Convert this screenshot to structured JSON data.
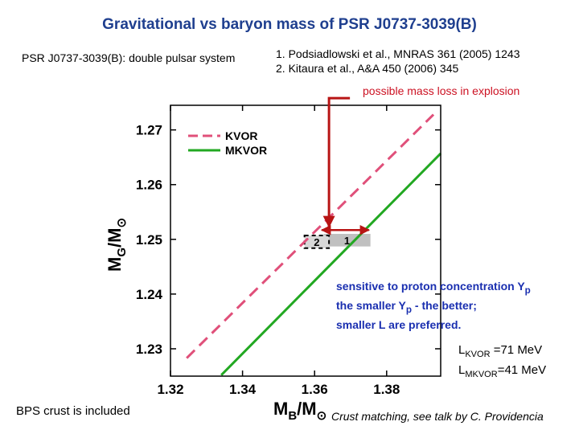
{
  "title": "Gravitational vs baryon mass of PSR J0737-3039(B)",
  "system_note": "PSR J0737-3039(B): double pulsar system",
  "references": [
    "1.  Podsiadlowski et al., MNRAS 361 (2005) 1243",
    "2.  Kitaura et al., A&A 450 (2006) 345"
  ],
  "mass_loss_note": "possible mass loss in explosion",
  "sensitivity_notes": {
    "line1_text": "sensitive to proton concentration Y",
    "line1_sub": "p",
    "line2_pre": "the smaller Y",
    "line2_sub": "p",
    "line2_post": " - the better;",
    "line3": "smaller L are preferred."
  },
  "l_values": [
    {
      "symbol": "L",
      "sub": "KVOR",
      "value": "=71 MeV"
    },
    {
      "symbol": "L",
      "sub": "MKVOR",
      "value": "=41 MeV"
    }
  ],
  "crust_note": "BPS crust is included",
  "crust_matching_note": "Crust matching, see talk by C. Providencia",
  "chart_data": {
    "type": "line",
    "xlabel": {
      "main": "M",
      "sub": "B",
      "rest": "/M",
      "sun": "⊙"
    },
    "ylabel": {
      "main": "M",
      "sub": "G",
      "rest": "/M",
      "sun": "⊙"
    },
    "xlim": [
      1.32,
      1.395
    ],
    "ylim": [
      1.225,
      1.2745
    ],
    "x_ticks": [
      1.32,
      1.34,
      1.36,
      1.38
    ],
    "x_tick_labels": [
      "1.32",
      "1.34",
      "1.36",
      "1.38"
    ],
    "y_ticks": [
      1.23,
      1.24,
      1.25,
      1.26,
      1.27
    ],
    "y_tick_labels": [
      "1.23",
      "1.24",
      "1.25",
      "1.26",
      "1.27"
    ],
    "series": [
      {
        "name": "KVOR",
        "color": "#e0507a",
        "dash": true,
        "x": [
          1.3245,
          1.393
        ],
        "y": [
          1.2283,
          1.2728
        ]
      },
      {
        "name": "MKVOR",
        "color": "#22a822",
        "dash": false,
        "x": [
          1.3341,
          1.395
        ],
        "y": [
          1.2252,
          1.2657
        ]
      }
    ],
    "legend_position": "top-left",
    "constraint_boxes": [
      {
        "label": "1",
        "x": [
          1.3625,
          1.3755
        ],
        "y": [
          1.2487,
          1.251
        ],
        "fill": "#c0c0c0",
        "dashed": false
      },
      {
        "label": "2",
        "x": [
          1.3572,
          1.364
        ],
        "y": [
          1.2484,
          1.2507
        ],
        "fill": "#d8d8d8",
        "dashed": true
      }
    ],
    "mass_loss_arrow": {
      "x": [
        1.362,
        1.3751
      ],
      "y": 1.2517,
      "color": "#b81414"
    },
    "explosion_marker": {
      "x": 1.364,
      "top_y": 1.2758,
      "bottom_y": 1.2523,
      "color": "#b81414"
    }
  }
}
